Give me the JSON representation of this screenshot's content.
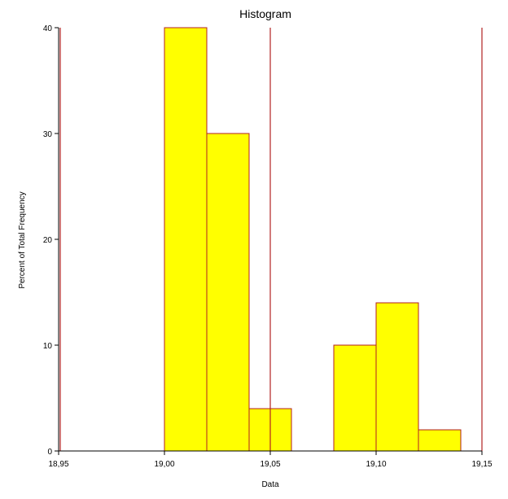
{
  "chart_data": {
    "type": "bar",
    "title": "Histogram",
    "xlabel": "Data",
    "ylabel": "Percent of Total Frequency",
    "xlim": [
      18.95,
      19.15
    ],
    "ylim": [
      0,
      40
    ],
    "x_ticks": [
      18.95,
      19.0,
      19.05,
      19.1,
      19.15
    ],
    "x_tick_labels": [
      "18,95",
      "19,00",
      "19,05",
      "19,10",
      "19,15"
    ],
    "y_ticks": [
      0,
      10,
      20,
      30,
      40
    ],
    "y_tick_labels": [
      "0",
      "10",
      "20",
      "30",
      "40"
    ],
    "bins": [
      {
        "start": 19.0,
        "end": 19.02,
        "value": 40
      },
      {
        "start": 19.02,
        "end": 19.04,
        "value": 30
      },
      {
        "start": 19.04,
        "end": 19.06,
        "value": 4
      },
      {
        "start": 19.06,
        "end": 19.08,
        "value": 0
      },
      {
        "start": 19.08,
        "end": 19.1,
        "value": 10
      },
      {
        "start": 19.1,
        "end": 19.12,
        "value": 14
      },
      {
        "start": 19.12,
        "end": 19.14,
        "value": 2
      }
    ],
    "reference_lines_x": [
      18.95,
      19.05,
      19.15
    ],
    "colors": {
      "bar_fill": "#ffff00",
      "bar_stroke": "#b22222",
      "ref_line": "#b22222"
    },
    "grid": false
  }
}
